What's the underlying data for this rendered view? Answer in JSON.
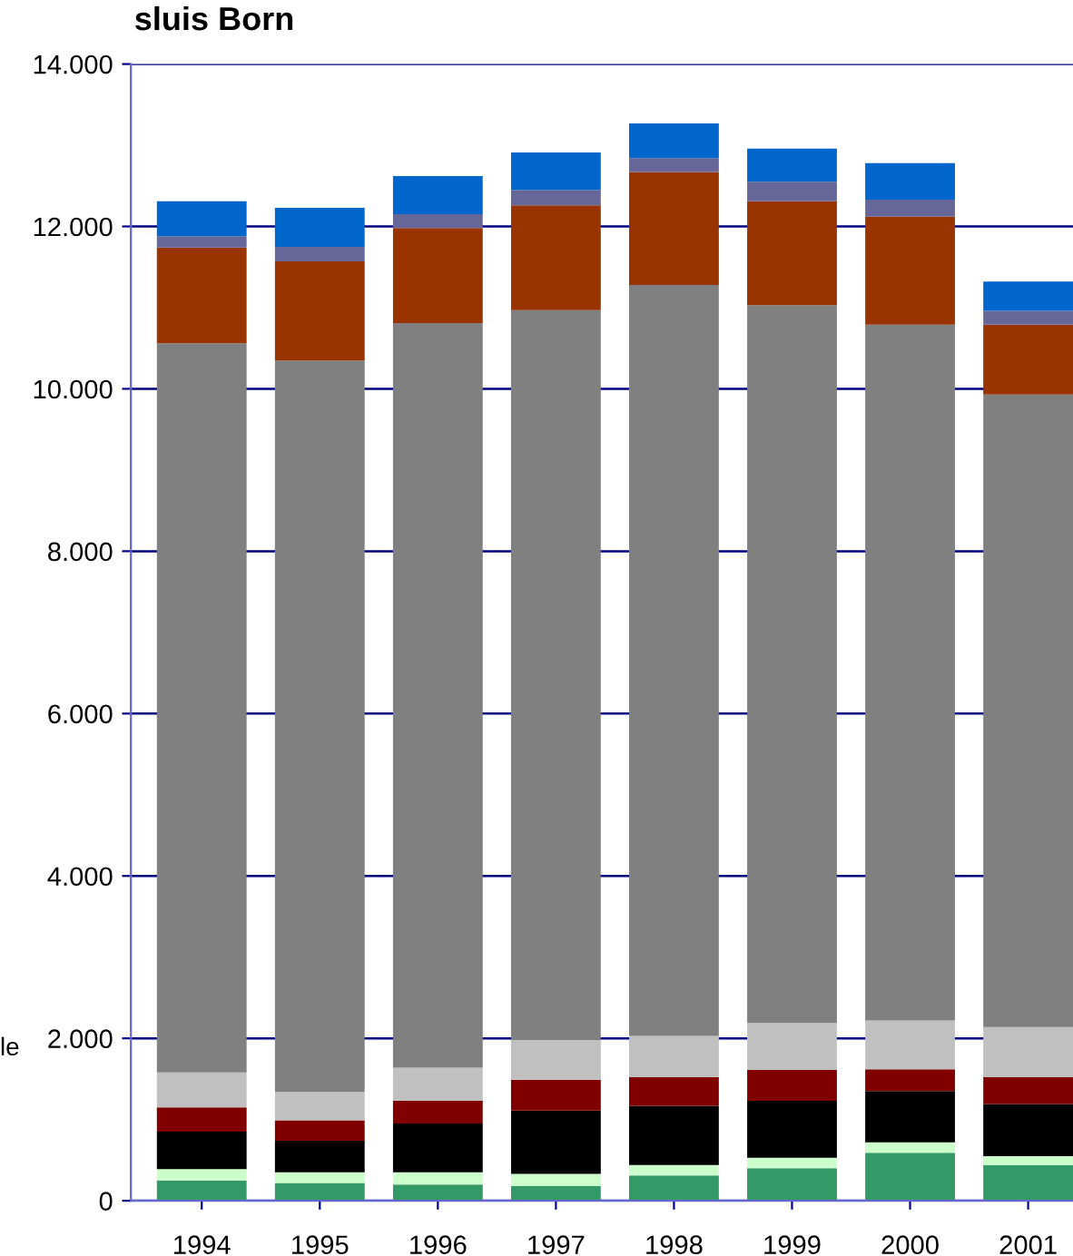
{
  "chart_data": {
    "type": "bar",
    "title": "sluis Born",
    "stacked": true,
    "grid": "y",
    "legend": false,
    "categories": [
      "1994",
      "1995",
      "1996",
      "1997",
      "1998",
      "1999",
      "2000",
      "2001"
    ],
    "series": [
      {
        "color": "#339966",
        "values": [
          250,
          220,
          200,
          180,
          310,
          400,
          590,
          440
        ]
      },
      {
        "color": "#ccffcc",
        "values": [
          140,
          130,
          150,
          150,
          130,
          130,
          130,
          110
        ]
      },
      {
        "color": "#000000",
        "values": [
          460,
          390,
          600,
          780,
          730,
          700,
          630,
          640
        ]
      },
      {
        "color": "#800000",
        "values": [
          300,
          250,
          280,
          380,
          350,
          380,
          270,
          330
        ]
      },
      {
        "color": "#c0c0c0",
        "values": [
          430,
          350,
          410,
          490,
          510,
          580,
          600,
          620
        ]
      },
      {
        "color": "#808080",
        "values": [
          8980,
          9010,
          9170,
          8990,
          9250,
          8840,
          8570,
          7790
        ]
      },
      {
        "color": "#993300",
        "values": [
          1180,
          1220,
          1170,
          1290,
          1390,
          1280,
          1330,
          860
        ]
      },
      {
        "color": "#666699",
        "values": [
          140,
          180,
          170,
          190,
          170,
          240,
          210,
          170
        ]
      },
      {
        "color": "#0066cc",
        "values": [
          430,
          480,
          470,
          460,
          430,
          410,
          450,
          360
        ]
      }
    ],
    "ylim": [
      0,
      14000
    ],
    "yticks": [
      {
        "value": 0,
        "label": "0"
      },
      {
        "value": 2000,
        "label": "2.000"
      },
      {
        "value": 4000,
        "label": "4.000"
      },
      {
        "value": 6000,
        "label": "6.000"
      },
      {
        "value": 8000,
        "label": "8.000"
      },
      {
        "value": 10000,
        "label": "10.000"
      },
      {
        "value": 12000,
        "label": "12.000"
      },
      {
        "value": 14000,
        "label": "14.000"
      }
    ],
    "annotations": [
      "le"
    ]
  }
}
